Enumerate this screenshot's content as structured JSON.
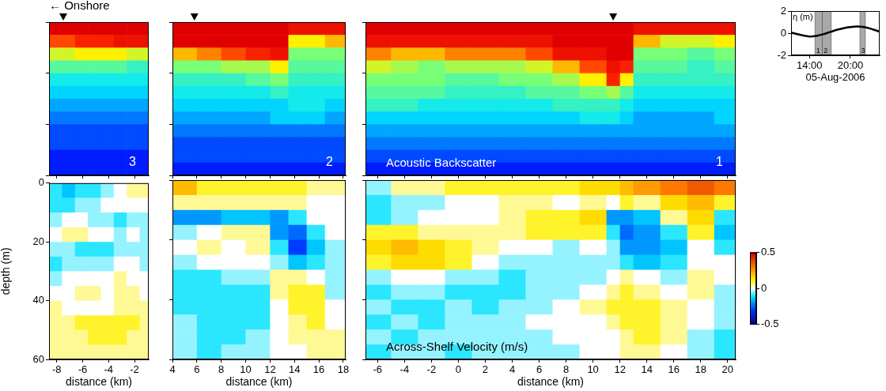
{
  "chart_data": [
    {
      "type": "heatmap",
      "title": "← Onshore",
      "panel_label": "3",
      "xlim": [
        -8.6,
        -0.9
      ],
      "xticks": [
        -8,
        -6,
        -4,
        -2
      ],
      "ylim": [
        0,
        60
      ],
      "yticks": [
        0,
        20,
        40,
        60
      ],
      "tick_labels": false,
      "markers_x": [
        -7.5
      ],
      "clim": [
        0,
        1
      ],
      "x_edges": [
        -8.6,
        -7.6,
        -6.6,
        -5.6,
        -4.6,
        -3.6,
        -2.6,
        -1.6,
        -0.9
      ],
      "y_edges": [
        0,
        5,
        10,
        15,
        20,
        25,
        30,
        35,
        40,
        45,
        50,
        55,
        60
      ],
      "cells": [
        [
          1,
          1,
          1,
          1,
          1,
          1,
          1,
          1
        ],
        [
          0.85,
          0.85,
          0.9,
          0.9,
          0.9,
          0.95,
          0.95,
          0.95
        ],
        [
          0.65,
          0.65,
          0.7,
          0.7,
          0.7,
          0.7,
          0.65,
          0.65
        ],
        [
          0.5,
          0.5,
          0.5,
          0.5,
          0.5,
          0.5,
          0.45,
          0.45
        ],
        [
          0.4,
          0.4,
          0.4,
          0.4,
          0.4,
          0.4,
          0.4,
          0.4
        ],
        [
          0.35,
          0.35,
          0.35,
          0.35,
          0.35,
          0.35,
          0.35,
          0.35
        ],
        [
          0.3,
          0.3,
          0.3,
          0.3,
          0.3,
          0.3,
          0.3,
          0.3
        ],
        [
          0.25,
          0.25,
          0.25,
          0.25,
          0.25,
          0.25,
          0.25,
          0.25
        ],
        [
          0.2,
          0.2,
          0.2,
          0.2,
          0.2,
          0.2,
          0.2,
          0.2
        ],
        [
          0.2,
          0.2,
          0.2,
          0.2,
          0.2,
          0.2,
          0.2,
          0.2
        ],
        [
          0.15,
          0.15,
          0.15,
          0.15,
          0.15,
          0.15,
          0.15,
          0.15
        ],
        [
          0.15,
          0.15,
          0.15,
          0.15,
          0.15,
          0.15,
          0.15,
          0.15
        ]
      ]
    },
    {
      "type": "heatmap",
      "panel_label": "2",
      "xlim": [
        4,
        18.2
      ],
      "xticks": [
        4,
        6,
        8,
        10,
        12,
        14,
        16,
        18
      ],
      "ylim": [
        0,
        60
      ],
      "yticks": [
        0,
        20,
        40,
        60
      ],
      "tick_labels": false,
      "markers_x": [
        5.8
      ],
      "clim": [
        0,
        1
      ],
      "x_edges": [
        4,
        6,
        8,
        10,
        12,
        13.5,
        15,
        16.5,
        18.2
      ],
      "y_edges": [
        0,
        5,
        10,
        15,
        20,
        25,
        30,
        35,
        40,
        45,
        50,
        55,
        60
      ],
      "cells": [
        [
          1,
          1,
          1,
          1,
          1,
          0.95,
          0.95,
          0.95
        ],
        [
          1,
          1,
          1,
          1,
          1,
          0.7,
          0.7,
          0.75
        ],
        [
          0.75,
          0.8,
          0.85,
          0.9,
          0.95,
          0.55,
          0.55,
          0.55
        ],
        [
          0.55,
          0.55,
          0.6,
          0.6,
          0.7,
          0.5,
          0.5,
          0.5
        ],
        [
          0.45,
          0.45,
          0.45,
          0.5,
          0.55,
          0.45,
          0.45,
          0.45
        ],
        [
          0.4,
          0.4,
          0.4,
          0.4,
          0.45,
          0.4,
          0.4,
          0.4
        ],
        [
          0.35,
          0.35,
          0.35,
          0.35,
          0.35,
          0.4,
          0.4,
          0.35
        ],
        [
          0.3,
          0.3,
          0.3,
          0.3,
          0.35,
          0.35,
          0.35,
          0.3
        ],
        [
          0.25,
          0.25,
          0.25,
          0.25,
          0.25,
          0.25,
          0.25,
          0.25
        ],
        [
          0.2,
          0.2,
          0.2,
          0.2,
          0.2,
          0.2,
          0.2,
          0.2
        ],
        [
          0.2,
          0.2,
          0.2,
          0.2,
          0.2,
          0.2,
          0.2,
          0.2
        ],
        [
          0.15,
          0.15,
          0.15,
          0.15,
          0.15,
          0.15,
          0.15,
          0.15
        ]
      ]
    },
    {
      "type": "heatmap",
      "panel_label": "1",
      "annotation": "Acoustic Backscatter",
      "xlim": [
        -6.9,
        20.6
      ],
      "xticks": [
        -6,
        -4,
        -2,
        0,
        2,
        4,
        6,
        8,
        10,
        12,
        14,
        16,
        18,
        20
      ],
      "ylim": [
        0,
        60
      ],
      "yticks": [
        0,
        20,
        40,
        60
      ],
      "tick_labels": false,
      "markers_x": [
        11.5
      ],
      "clim": [
        0,
        1
      ],
      "x_edges": [
        -6.9,
        -5,
        -3,
        -1,
        1,
        3,
        5,
        7,
        9,
        11,
        12,
        13,
        15,
        17,
        19,
        20.6
      ],
      "y_edges": [
        0,
        5,
        10,
        15,
        20,
        25,
        30,
        35,
        40,
        45,
        50,
        55,
        60
      ],
      "cells": [
        [
          1,
          1,
          1,
          1,
          1,
          1,
          1,
          1,
          1,
          1,
          1,
          0.95,
          0.95,
          0.95,
          0.95
        ],
        [
          0.95,
          0.95,
          0.95,
          0.95,
          0.95,
          0.95,
          0.95,
          1,
          1,
          1,
          1,
          0.75,
          0.65,
          0.65,
          0.7
        ],
        [
          0.8,
          0.75,
          0.75,
          0.8,
          0.8,
          0.8,
          0.85,
          0.95,
          0.95,
          1,
          1,
          0.55,
          0.55,
          0.5,
          0.55
        ],
        [
          0.65,
          0.6,
          0.55,
          0.6,
          0.6,
          0.6,
          0.65,
          0.75,
          0.85,
          0.95,
          0.9,
          0.5,
          0.5,
          0.45,
          0.5
        ],
        [
          0.55,
          0.55,
          0.55,
          0.5,
          0.5,
          0.55,
          0.55,
          0.6,
          0.7,
          0.9,
          0.7,
          0.45,
          0.45,
          0.45,
          0.45
        ],
        [
          0.5,
          0.5,
          0.5,
          0.45,
          0.45,
          0.45,
          0.5,
          0.5,
          0.55,
          0.6,
          0.5,
          0.4,
          0.4,
          0.4,
          0.4
        ],
        [
          0.45,
          0.45,
          0.4,
          0.4,
          0.4,
          0.4,
          0.4,
          0.45,
          0.45,
          0.45,
          0.4,
          0.35,
          0.35,
          0.35,
          0.35
        ],
        [
          0.35,
          0.35,
          0.35,
          0.35,
          0.35,
          0.35,
          0.35,
          0.35,
          0.4,
          0.4,
          0.35,
          0.3,
          0.3,
          0.3,
          0.35
        ],
        [
          0.3,
          0.3,
          0.3,
          0.3,
          0.3,
          0.3,
          0.3,
          0.3,
          0.3,
          0.3,
          0.3,
          0.3,
          0.3,
          0.3,
          0.3
        ],
        [
          0.25,
          0.25,
          0.25,
          0.25,
          0.25,
          0.25,
          0.25,
          0.25,
          0.25,
          0.25,
          0.25,
          0.25,
          0.25,
          0.25,
          0.25
        ],
        [
          0.2,
          0.2,
          0.2,
          0.2,
          0.2,
          0.2,
          0.2,
          0.2,
          0.2,
          0.2,
          0.2,
          0.2,
          0.2,
          0.2,
          0.2
        ],
        [
          0.15,
          0.15,
          0.15,
          0.15,
          0.15,
          0.15,
          0.15,
          0.15,
          0.15,
          0.15,
          0.15,
          0.15,
          0.15,
          0.15,
          0.15
        ]
      ]
    },
    {
      "type": "heatmap",
      "xlabel": "distance (km)",
      "ylabel": "depth (m)",
      "xlim": [
        -8.6,
        -0.9
      ],
      "xticks": [
        -8,
        -6,
        -4,
        -2
      ],
      "ylim": [
        0,
        60
      ],
      "yticks": [
        0,
        20,
        40,
        60
      ],
      "clim": [
        -0.5,
        0.5
      ],
      "x_edges": [
        -8.6,
        -7.6,
        -6.6,
        -5.6,
        -4.6,
        -3.6,
        -2.6,
        -1.6,
        -0.9
      ],
      "y_edges": [
        0,
        5,
        10,
        15,
        20,
        25,
        30,
        35,
        40,
        45,
        50,
        55,
        60
      ],
      "cells": [
        [
          -0.1,
          -0.15,
          -0.1,
          -0.1,
          -0.05,
          0,
          0.05,
          0.05
        ],
        [
          -0.1,
          -0.1,
          -0.05,
          -0.05,
          0,
          0,
          0,
          0
        ],
        [
          -0.05,
          0,
          0,
          -0.05,
          -0.05,
          -0.1,
          -0.05,
          -0.05
        ],
        [
          0,
          0.05,
          0.05,
          0,
          0,
          -0.05,
          0,
          -0.05
        ],
        [
          -0.05,
          -0.05,
          -0.1,
          -0.1,
          -0.1,
          -0.05,
          -0.05,
          -0.05
        ],
        [
          -0.1,
          -0.05,
          -0.05,
          -0.05,
          -0.05,
          0,
          0,
          -0.05
        ],
        [
          -0.05,
          0,
          0,
          0,
          0,
          0.05,
          0,
          0
        ],
        [
          0,
          0,
          0.05,
          0.05,
          0,
          0.05,
          0.05,
          0
        ],
        [
          0.05,
          0,
          0,
          0,
          0,
          0.05,
          0.05,
          0.05
        ],
        [
          0.05,
          0.05,
          0.1,
          0.1,
          0.1,
          0.1,
          0.1,
          0.05
        ],
        [
          0.05,
          0.05,
          0.05,
          0.1,
          0.1,
          0.1,
          0.05,
          0.05
        ],
        [
          0.05,
          0.05,
          0.05,
          0.05,
          0.05,
          0.05,
          0.05,
          0.05
        ]
      ]
    },
    {
      "type": "heatmap",
      "xlabel": "distance (km)",
      "xlim": [
        4,
        18.2
      ],
      "xticks": [
        4,
        6,
        8,
        10,
        12,
        14,
        16,
        18
      ],
      "ylim": [
        0,
        60
      ],
      "yticks": [
        0,
        20,
        40,
        60
      ],
      "tick_labels": "x",
      "clim": [
        -0.5,
        0.5
      ],
      "x_edges": [
        4,
        6,
        8,
        10,
        12,
        13.5,
        15,
        16.5,
        18.2
      ],
      "y_edges": [
        0,
        5,
        10,
        15,
        20,
        25,
        30,
        35,
        40,
        45,
        50,
        55,
        60
      ],
      "cells": [
        [
          0.2,
          0.1,
          0.1,
          0.1,
          0.1,
          0.1,
          0.05,
          0.05
        ],
        [
          0.05,
          0.05,
          0.05,
          0.05,
          0.05,
          0.05,
          0,
          0
        ],
        [
          -0.2,
          -0.2,
          -0.15,
          -0.15,
          -0.2,
          -0.1,
          0,
          0
        ],
        [
          -0.05,
          0,
          0.05,
          0.05,
          -0.2,
          -0.25,
          -0.1,
          0
        ],
        [
          0,
          0.05,
          0,
          0.05,
          -0.1,
          -0.3,
          -0.15,
          -0.05
        ],
        [
          -0.05,
          0,
          0,
          0,
          -0.05,
          -0.15,
          -0.1,
          -0.05
        ],
        [
          -0.1,
          -0.1,
          -0.05,
          -0.05,
          0.05,
          0.05,
          0,
          -0.05
        ],
        [
          -0.1,
          -0.1,
          -0.1,
          -0.1,
          0.05,
          0.1,
          0.1,
          -0.05
        ],
        [
          -0.1,
          -0.1,
          -0.1,
          -0.1,
          0,
          0.1,
          0.1,
          0
        ],
        [
          -0.05,
          -0.1,
          -0.1,
          -0.1,
          0,
          0.05,
          0.1,
          0
        ],
        [
          -0.05,
          -0.1,
          -0.1,
          -0.05,
          0,
          0.05,
          0.05,
          0.05
        ],
        [
          -0.05,
          -0.1,
          -0.05,
          -0.05,
          0,
          0,
          0.05,
          0.05
        ]
      ]
    },
    {
      "type": "heatmap",
      "xlabel": "distance (km)",
      "annotation": "Across-Shelf Velocity (m/s)",
      "xlim": [
        -6.9,
        20.6
      ],
      "xticks": [
        -6,
        -4,
        -2,
        0,
        2,
        4,
        6,
        8,
        10,
        12,
        14,
        16,
        18,
        20
      ],
      "ylim": [
        0,
        60
      ],
      "yticks": [
        0,
        20,
        40,
        60
      ],
      "tick_labels": "x",
      "clim": [
        -0.5,
        0.5
      ],
      "colorbar_ticks": [
        -0.5,
        0,
        0.5
      ],
      "x_edges": [
        -6.9,
        -5,
        -3,
        -1,
        1,
        3,
        5,
        7,
        9,
        11,
        12,
        13,
        15,
        17,
        19,
        20.6
      ],
      "y_edges": [
        0,
        5,
        10,
        15,
        20,
        25,
        30,
        35,
        40,
        45,
        50,
        55,
        60
      ],
      "cells": [
        [
          -0.05,
          0.05,
          0.05,
          0.1,
          0.1,
          0.1,
          0.1,
          0.1,
          0.15,
          0.15,
          0.2,
          0.25,
          0.3,
          0.35,
          0.3
        ],
        [
          -0.1,
          -0.05,
          -0.05,
          0,
          0,
          0.05,
          0.05,
          0,
          0.05,
          0,
          0.1,
          0.05,
          0.15,
          0.2,
          0.1
        ],
        [
          -0.1,
          -0.05,
          0,
          0,
          0,
          0.05,
          0.1,
          0.1,
          0.15,
          -0.2,
          -0.2,
          -0.15,
          0.05,
          0.15,
          -0.1
        ],
        [
          0.1,
          0.1,
          0.05,
          0.05,
          0.05,
          0.05,
          0.1,
          0.1,
          0.1,
          -0.1,
          -0.25,
          -0.2,
          -0.1,
          0.1,
          -0.15
        ],
        [
          0.15,
          0.2,
          0.15,
          0.1,
          0.05,
          0,
          0,
          -0.05,
          0,
          -0.05,
          -0.2,
          -0.2,
          -0.15,
          0,
          -0.1
        ],
        [
          0.1,
          0.15,
          0.15,
          0.1,
          0,
          -0.05,
          -0.05,
          -0.05,
          -0.05,
          -0.05,
          -0.1,
          -0.15,
          -0.1,
          0,
          0
        ],
        [
          -0.05,
          0,
          0,
          -0.05,
          -0.05,
          -0.1,
          -0.05,
          -0.05,
          -0.05,
          0,
          0.05,
          0,
          -0.05,
          0.05,
          0
        ],
        [
          -0.1,
          -0.05,
          -0.05,
          -0.1,
          -0.1,
          -0.1,
          -0.05,
          -0.05,
          0,
          0.05,
          0.1,
          0.05,
          0,
          0.05,
          -0.05
        ],
        [
          -0.05,
          -0.1,
          -0.1,
          -0.05,
          -0.1,
          -0.05,
          -0.05,
          0,
          0.05,
          0.1,
          0.1,
          0.1,
          0.05,
          0,
          -0.05
        ],
        [
          -0.1,
          -0.05,
          -0.1,
          -0.05,
          -0.05,
          -0.05,
          0,
          0,
          0,
          0.05,
          0.1,
          0.1,
          0.05,
          0,
          -0.05
        ],
        [
          -0.05,
          -0.1,
          -0.05,
          -0.05,
          -0.05,
          -0.05,
          -0.05,
          0,
          0,
          0,
          0.05,
          0.1,
          0.05,
          -0.05,
          -0.1
        ],
        [
          -0.1,
          -0.05,
          -0.05,
          -0.1,
          -0.05,
          -0.05,
          -0.05,
          -0.05,
          0,
          0,
          0.05,
          0.05,
          0,
          -0.05,
          -0.1
        ]
      ]
    },
    {
      "type": "line",
      "xlabel": "05-Aug-2006",
      "ylabel": "η (m)",
      "color": "#000000",
      "x": [
        11.3,
        12,
        13,
        14,
        15,
        16,
        17,
        18,
        19,
        20,
        21,
        22,
        23,
        24,
        24.3
      ],
      "values": [
        0.05,
        -0.05,
        -0.2,
        -0.3,
        -0.25,
        -0.1,
        0.1,
        0.3,
        0.45,
        0.55,
        0.6,
        0.55,
        0.4,
        0.2,
        0.15
      ],
      "xlim": [
        11.3,
        24.3
      ],
      "xticks": [
        {
          "value": 14,
          "label": "14:00"
        },
        {
          "value": 20,
          "label": "20:00"
        }
      ],
      "ylim": [
        -2,
        2
      ],
      "yticks": [
        -2,
        0,
        2
      ],
      "windows": [
        {
          "start": 14.8,
          "end": 15.9,
          "label": "1"
        },
        {
          "start": 15.9,
          "end": 17.2,
          "label": "2"
        },
        {
          "start": 21.4,
          "end": 22.2,
          "label": "3"
        }
      ]
    }
  ]
}
